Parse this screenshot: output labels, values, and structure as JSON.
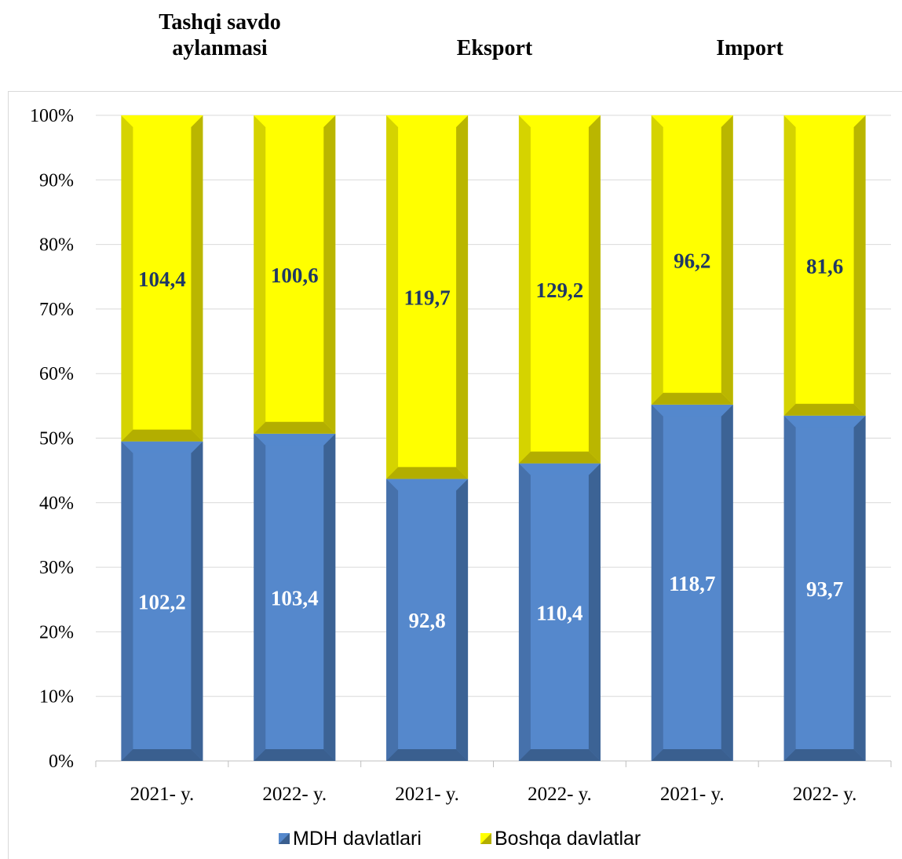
{
  "group_titles": [
    {
      "line1": "Tashqi savdo",
      "line2": "aylanmasi"
    },
    {
      "line1": "Eksport",
      "line2": ""
    },
    {
      "line1": "Import",
      "line2": ""
    }
  ],
  "colors": {
    "mdh": "#5588cc",
    "mdh_dark": "#3a5f8f",
    "boshqa": "#ffff00",
    "boshqa_dark": "#b3ae00",
    "mdh_label": "#ffffff",
    "boshqa_label": "#1f3864"
  },
  "chart_data": {
    "type": "bar",
    "stacked": "percent",
    "categories": [
      "2021- y.",
      "2022- y.",
      "2021- y.",
      "2022- y.",
      "2021- y.",
      "2022- y."
    ],
    "ylim": [
      0,
      100
    ],
    "yticks": [
      "0%",
      "10%",
      "20%",
      "30%",
      "40%",
      "50%",
      "60%",
      "70%",
      "80%",
      "90%",
      "100%"
    ],
    "grid": true,
    "legend_position": "bottom",
    "series": [
      {
        "name": "MDH davlatlari",
        "share_percent": [
          49.5,
          50.7,
          43.7,
          46.1,
          55.2,
          53.5
        ],
        "labels": [
          "102,2",
          "103,4",
          "92,8",
          "110,4",
          "118,7",
          "93,7"
        ]
      },
      {
        "name": "Boshqa davlatlar",
        "share_percent": [
          50.5,
          49.3,
          56.3,
          53.9,
          44.8,
          46.5
        ],
        "labels": [
          "104,4",
          "100,6",
          "119,7",
          "129,2",
          "96,2",
          "81,6"
        ]
      }
    ]
  }
}
